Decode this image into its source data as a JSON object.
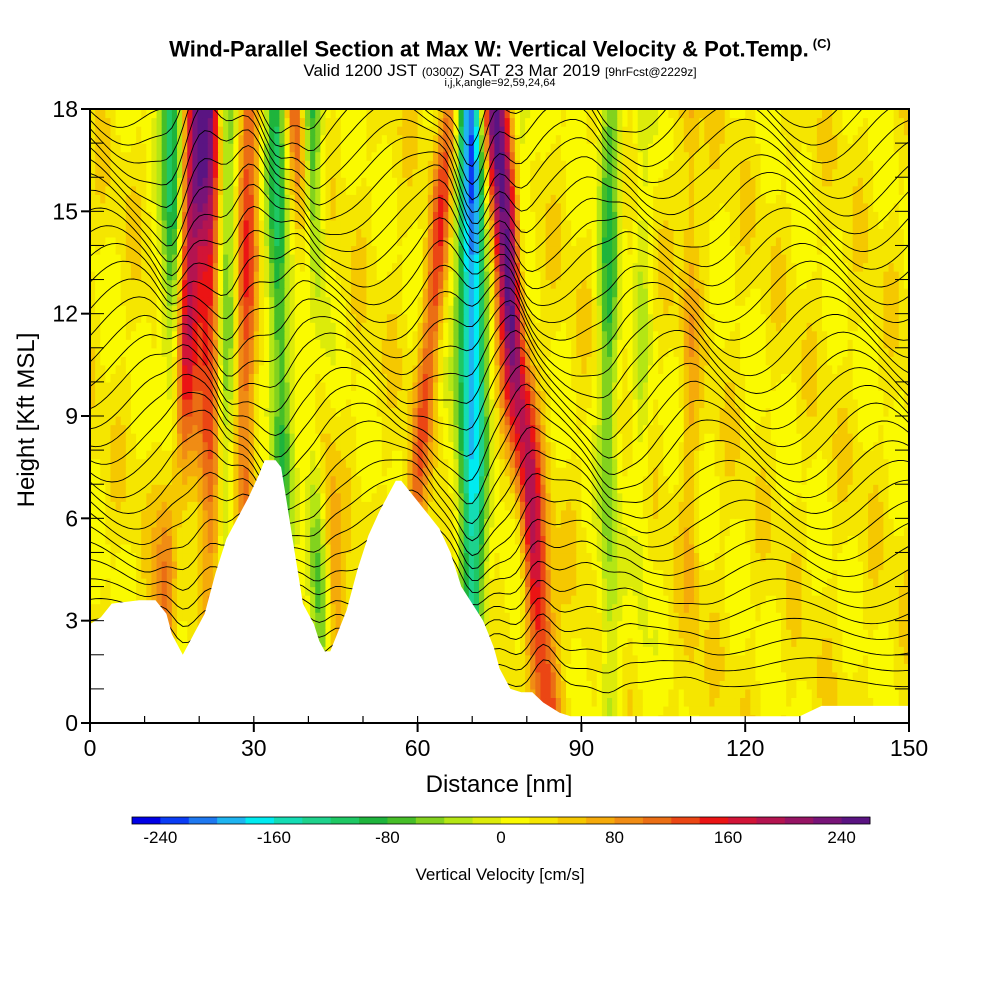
{
  "header": {
    "title": "Wind-Parallel Section at Max W: Vertical Velocity & Pot.Temp.",
    "copyright": "(C)",
    "valid_main": "Valid 1200 JST",
    "valid_utc": "(0300Z)",
    "valid_date": "SAT 23 Mar 2019",
    "valid_fcst": "[9hrFcst@2229z]",
    "params": "i,j,k,angle=92,59,24,64"
  },
  "chart_data": {
    "type": "heatmap",
    "title": "Wind-Parallel Section at Max W: Vertical Velocity & Pot.Temp.",
    "xlabel": "Distance [nm]",
    "ylabel": "Height [Kft MSL]",
    "xlim": [
      0,
      150
    ],
    "ylim": [
      0,
      18
    ],
    "xticks": [
      0,
      30,
      60,
      90,
      120,
      150
    ],
    "yticks": [
      0,
      3,
      6,
      9,
      12,
      15,
      18
    ],
    "colorbar": {
      "label": "Vertical Velocity [cm/s]",
      "min": -260,
      "max": 260,
      "step": 20,
      "tick_values": [
        -240,
        -160,
        -80,
        0,
        80,
        160,
        240
      ],
      "colors": [
        "#0000e6",
        "#0a3cf5",
        "#1e78f0",
        "#1eb4f0",
        "#00ebf0",
        "#14dcb4",
        "#1ed28c",
        "#1ec864",
        "#1eb43c",
        "#46be28",
        "#82d21e",
        "#b4e614",
        "#dceb0a",
        "#fafa00",
        "#f5e600",
        "#f5c800",
        "#f5aa0a",
        "#f08c14",
        "#eb6e14",
        "#eb4614",
        "#eb1414",
        "#d21437",
        "#b41450",
        "#961464",
        "#781478",
        "#5a1482"
      ]
    },
    "terrain_kft": [
      [
        0,
        2.9
      ],
      [
        2,
        3.1
      ],
      [
        4,
        3.5
      ],
      [
        9,
        3.6
      ],
      [
        12,
        3.6
      ],
      [
        14,
        3.2
      ],
      [
        15,
        2.6
      ],
      [
        17,
        2.0
      ],
      [
        19,
        2.6
      ],
      [
        21,
        3.2
      ],
      [
        23,
        4.4
      ],
      [
        25,
        5.4
      ],
      [
        27,
        6.0
      ],
      [
        29,
        6.6
      ],
      [
        31,
        7.3
      ],
      [
        32,
        7.7
      ],
      [
        34,
        7.7
      ],
      [
        35,
        7.5
      ],
      [
        36,
        6.5
      ],
      [
        37,
        5.5
      ],
      [
        38,
        4.5
      ],
      [
        39,
        3.5
      ],
      [
        41,
        2.9
      ],
      [
        42,
        2.4
      ],
      [
        43,
        2.1
      ],
      [
        44,
        2.1
      ],
      [
        45,
        2.5
      ],
      [
        47,
        3.3
      ],
      [
        49,
        4.5
      ],
      [
        51,
        5.5
      ],
      [
        53,
        6.2
      ],
      [
        55,
        6.8
      ],
      [
        56,
        7.1
      ],
      [
        57,
        7.1
      ],
      [
        58,
        6.9
      ],
      [
        60,
        6.5
      ],
      [
        62,
        6.1
      ],
      [
        64,
        5.7
      ],
      [
        66,
        5.0
      ],
      [
        68,
        4.0
      ],
      [
        70,
        3.5
      ],
      [
        72,
        3.0
      ],
      [
        73,
        2.6
      ],
      [
        74,
        2.2
      ],
      [
        75,
        1.6
      ],
      [
        77,
        1.0
      ],
      [
        79,
        0.9
      ],
      [
        81,
        0.9
      ],
      [
        83,
        0.6
      ],
      [
        86,
        0.3
      ],
      [
        88,
        0.2
      ],
      [
        130,
        0.2
      ],
      [
        134,
        0.5
      ],
      [
        150,
        0.5
      ]
    ],
    "updraft_bands": [
      {
        "x_km_at_top": 20,
        "x_at_bottom": 13,
        "w_cms": 200
      },
      {
        "x_at_top": 22,
        "x_at_bottom": 22,
        "w_cms": 120
      },
      {
        "x_at_top": 29,
        "x_at_bottom": 28,
        "w_cms": 100
      },
      {
        "x_at_top": 38,
        "x_at_bottom": 46,
        "w_cms": 120
      },
      {
        "x_at_top": 74,
        "x_at_bottom": 84,
        "w_cms": 240
      },
      {
        "x_at_top": 66,
        "x_at_bottom": 56,
        "w_cms": 100
      },
      {
        "x_at_top": 110,
        "x_at_bottom": 110,
        "w_cms": 40
      }
    ],
    "downdraft_bands": [
      {
        "x_at_top": 15,
        "x_at_bottom": 16,
        "w_cms": -140
      },
      {
        "x_at_top": 25,
        "x_at_bottom": 25,
        "w_cms": -80
      },
      {
        "x_at_top": 34,
        "x_at_bottom": 36,
        "w_cms": -120
      },
      {
        "x_at_top": 40,
        "x_at_bottom": 43,
        "w_cms": -140
      },
      {
        "x_at_top": 70,
        "x_at_bottom": 70,
        "w_cms": -240
      },
      {
        "x_at_top": 79,
        "x_at_bottom": 79,
        "w_cms": -60
      },
      {
        "x_at_top": 95,
        "x_at_bottom": 95,
        "w_cms": -100
      },
      {
        "x_at_top": 101,
        "x_at_bottom": 101,
        "w_cms": -40
      }
    ]
  }
}
